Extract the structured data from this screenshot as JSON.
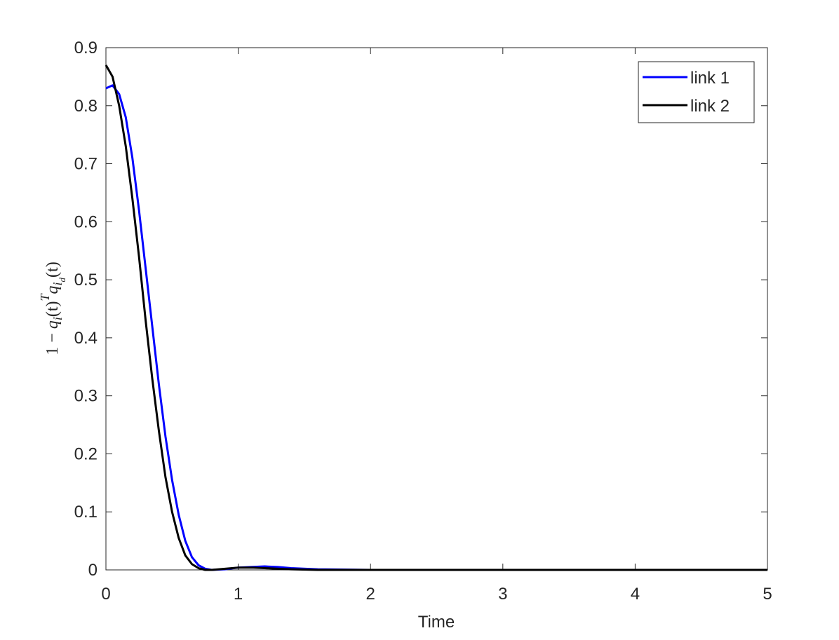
{
  "chart_data": {
    "type": "line",
    "xlabel": "Time",
    "ylabel": [
      "1 − ",
      "q",
      "i",
      "(t)",
      "T",
      "q",
      "i",
      "d",
      "(t)"
    ],
    "x": [
      0,
      0.05,
      0.1,
      0.15,
      0.2,
      0.25,
      0.3,
      0.35,
      0.4,
      0.45,
      0.5,
      0.55,
      0.6,
      0.65,
      0.7,
      0.75,
      0.8,
      0.9,
      1.0,
      1.1,
      1.2,
      1.3,
      1.4,
      1.6,
      2,
      5
    ],
    "series": [
      {
        "name": "link 1",
        "color": "#0000ff",
        "values": [
          0.83,
          0.835,
          0.82,
          0.78,
          0.71,
          0.62,
          0.52,
          0.42,
          0.32,
          0.23,
          0.155,
          0.095,
          0.05,
          0.022,
          0.008,
          0.002,
          0,
          0.001,
          0.004,
          0.005,
          0.006,
          0.005,
          0.003,
          0.001,
          0,
          0
        ]
      },
      {
        "name": "link 2",
        "color": "#000000",
        "values": [
          0.87,
          0.85,
          0.8,
          0.73,
          0.64,
          0.54,
          0.43,
          0.33,
          0.24,
          0.16,
          0.1,
          0.055,
          0.025,
          0.01,
          0.003,
          0,
          0,
          0.002,
          0.004,
          0.004,
          0.003,
          0.002,
          0.001,
          0,
          0,
          0
        ]
      }
    ],
    "xlim": [
      0,
      5
    ],
    "xticks": [
      0,
      1,
      2,
      3,
      4,
      5
    ],
    "ylim": [
      0,
      0.9
    ],
    "yticks": [
      0,
      0.1,
      0.2,
      0.3,
      0.4,
      0.5,
      0.6,
      0.7,
      0.8,
      0.9
    ],
    "legend": "upper-right",
    "grid": false
  }
}
